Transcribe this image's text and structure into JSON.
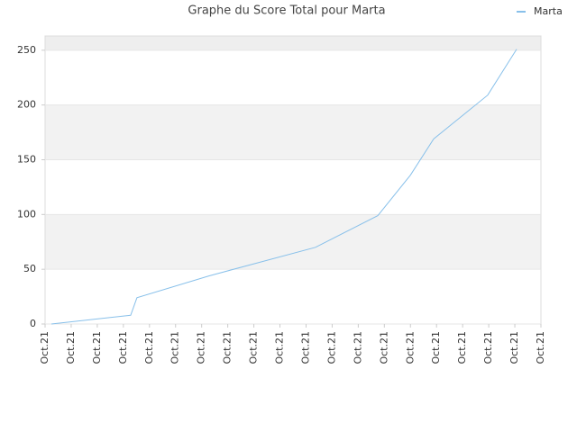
{
  "chart_data": {
    "type": "line",
    "title": "Graphe du Score Total pour Marta",
    "series": [
      {
        "name": "Marta",
        "color": "#88c0ea",
        "x": [
          0.24,
          3.28,
          3.52,
          6.29,
          10.36,
          12.75,
          14.0,
          14.89,
          16.96,
          18.07
        ],
        "values": [
          0,
          8,
          24,
          44,
          70,
          99,
          136,
          169,
          209,
          251
        ]
      }
    ],
    "xlim": [
      0,
      19
    ],
    "xticks": [
      {
        "value": 0,
        "label": "Oct.21"
      },
      {
        "value": 1,
        "label": "Oct.21"
      },
      {
        "value": 2,
        "label": "Oct.21"
      },
      {
        "value": 3,
        "label": "Oct.21"
      },
      {
        "value": 4,
        "label": "Oct.21"
      },
      {
        "value": 5,
        "label": "Oct.21"
      },
      {
        "value": 6,
        "label": "Oct.21"
      },
      {
        "value": 7,
        "label": "Oct.21"
      },
      {
        "value": 8,
        "label": "Oct.21"
      },
      {
        "value": 9,
        "label": "Oct.21"
      },
      {
        "value": 10,
        "label": "Oct.21"
      },
      {
        "value": 11,
        "label": "Oct.21"
      },
      {
        "value": 12,
        "label": "Oct.21"
      },
      {
        "value": 13,
        "label": "Oct.21"
      },
      {
        "value": 14,
        "label": "Oct.21"
      },
      {
        "value": 15,
        "label": "Oct.21"
      },
      {
        "value": 16,
        "label": "Oct.21"
      },
      {
        "value": 17,
        "label": "Oct.21"
      },
      {
        "value": 18,
        "label": "Oct.21"
      },
      {
        "value": 19,
        "label": "Oct.21"
      }
    ],
    "ylim": [
      0,
      263
    ],
    "yticks": [
      0,
      50,
      100,
      150,
      200,
      250
    ],
    "grid": true,
    "legend": "top-right"
  }
}
